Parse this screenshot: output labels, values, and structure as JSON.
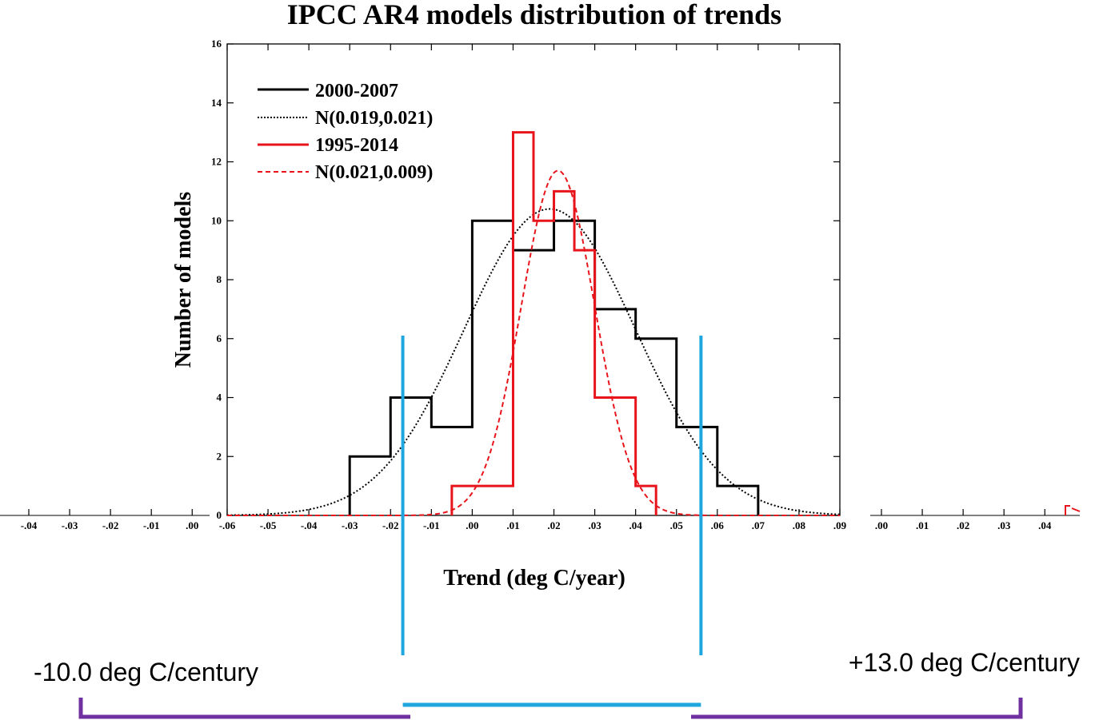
{
  "chart_data": {
    "type": "bar",
    "title": "IPCC AR4 models distribution of trends",
    "xlabel": "Trend (deg C/year)",
    "ylabel": "Number of models",
    "xlim": [
      -0.06,
      0.09
    ],
    "ylim": [
      0,
      16
    ],
    "bin_width": 0.01,
    "y_ticks": [
      0,
      2,
      4,
      6,
      8,
      10,
      12,
      14,
      16
    ],
    "x_tick_values": [
      -0.06,
      -0.05,
      -0.04,
      -0.03,
      -0.02,
      -0.01,
      0.0,
      0.01,
      0.02,
      0.03,
      0.04,
      0.05,
      0.06,
      0.07,
      0.08,
      0.09
    ],
    "x_tick_labels": [
      "-.06",
      "-.05",
      "-.04",
      "-.03",
      "-.02",
      "-.01",
      ".00",
      ".01",
      ".02",
      ".03",
      ".04",
      ".05",
      ".06",
      ".07",
      ".08",
      ".09"
    ],
    "left_fragment_tick_labels": [
      "-.04",
      "-.03",
      "-.02",
      "-.01",
      ".00"
    ],
    "right_fragment_tick_labels": [
      ".00",
      ".01",
      ".02",
      ".03",
      ".04"
    ],
    "legend_position": "top-left",
    "series": [
      {
        "name": "2000-2007",
        "kind": "histogram",
        "color": "#000000",
        "dash": "solid",
        "bin_edges": [
          -0.03,
          -0.02,
          -0.01,
          0.0,
          0.01,
          0.02,
          0.03,
          0.04,
          0.05,
          0.06,
          0.07
        ],
        "counts": [
          2,
          4,
          3,
          10,
          9,
          10,
          7,
          6,
          3,
          1
        ]
      },
      {
        "name": "N(0.019,0.021)",
        "kind": "normal",
        "color": "#000000",
        "dash": "dotted",
        "mean": 0.019,
        "sd": 0.021,
        "peak": 10.4
      },
      {
        "name": "1995-2014",
        "kind": "histogram",
        "color": "#e8141b",
        "dash": "solid",
        "bin_edges": [
          -0.005,
          0.0,
          0.005,
          0.01,
          0.015,
          0.02,
          0.025,
          0.03,
          0.035,
          0.04,
          0.045
        ],
        "counts": [
          1,
          1,
          1,
          13,
          10,
          11,
          9,
          4,
          4,
          1
        ]
      },
      {
        "name": "N(0.021,0.009)",
        "kind": "normal",
        "color": "#e8141b",
        "dash": "dashed",
        "mean": 0.021,
        "sd": 0.009,
        "peak": 11.7
      }
    ],
    "bracket_marks": [
      -0.017,
      0.056
    ]
  },
  "annotations": {
    "left_label": "-10.0 deg C/century",
    "right_label": "+13.0 deg C/century"
  },
  "colors": {
    "bracket": "#1ea7de",
    "range": "#7030a0"
  }
}
